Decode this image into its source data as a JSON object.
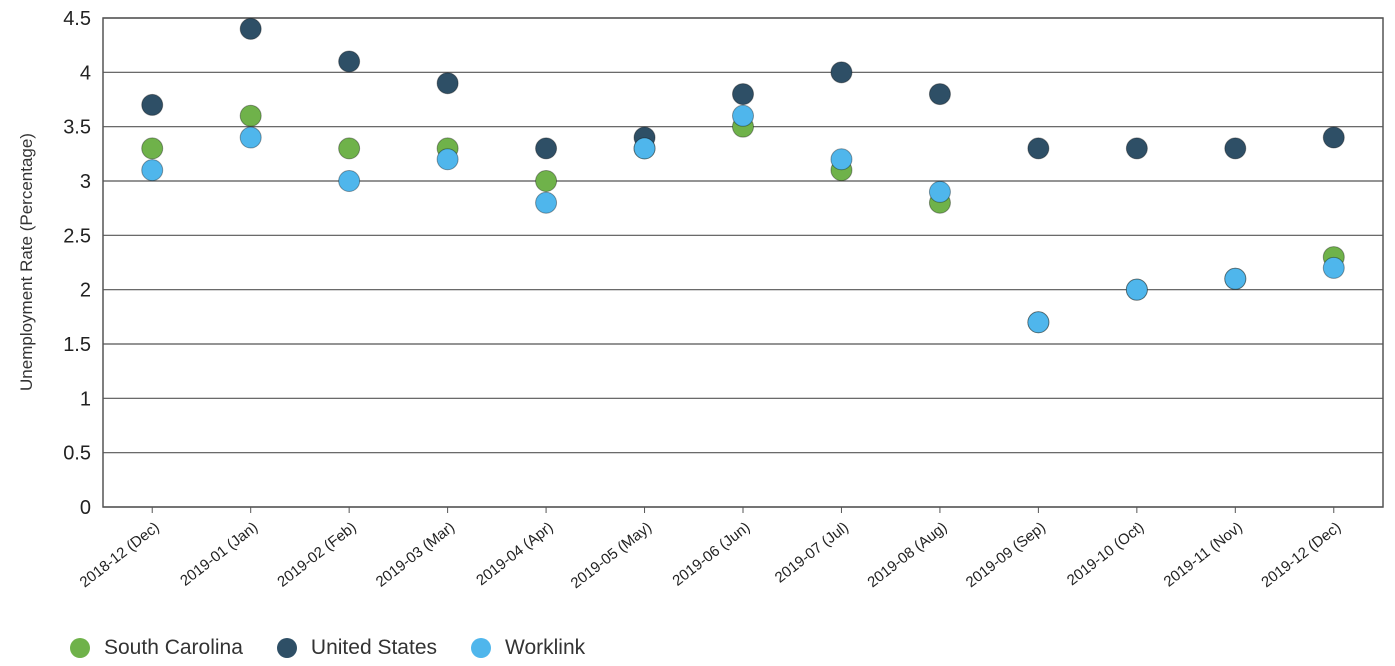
{
  "chart_data": {
    "type": "scatter",
    "title": "",
    "xlabel": "",
    "ylabel": "Unemployment Rate (Percentage)",
    "ylim": [
      0,
      4.5
    ],
    "yticks": [
      "0",
      "0.5",
      "1",
      "1.5",
      "2",
      "2.5",
      "3",
      "3.5",
      "4",
      "4.5"
    ],
    "grid": "horizontal",
    "legend_position": "bottom-left",
    "categories": [
      "2018-12 (Dec)",
      "2019-01 (Jan)",
      "2019-02 (Feb)",
      "2019-03 (Mar)",
      "2019-04 (Apr)",
      "2019-05 (May)",
      "2019-06 (Jun)",
      "2019-07 (Jul)",
      "2019-08 (Aug)",
      "2019-09 (Sep)",
      "2019-10 (Oct)",
      "2019-11 (Nov)",
      "2019-12 (Dec)"
    ],
    "series": [
      {
        "name": "South Carolina",
        "color": "#6fb24a",
        "values": [
          3.3,
          3.6,
          3.3,
          3.3,
          3.0,
          3.3,
          3.5,
          3.1,
          2.8,
          1.7,
          2.0,
          2.1,
          2.3
        ]
      },
      {
        "name": "United States",
        "color": "#2e4f66",
        "values": [
          3.7,
          4.4,
          4.1,
          3.9,
          3.3,
          3.4,
          3.8,
          4.0,
          3.8,
          3.3,
          3.3,
          3.3,
          3.4
        ]
      },
      {
        "name": "Worklink",
        "color": "#4fb6ec",
        "values": [
          3.1,
          3.4,
          3.0,
          3.2,
          2.8,
          3.3,
          3.6,
          3.2,
          2.9,
          1.7,
          2.0,
          2.1,
          2.2
        ]
      }
    ]
  }
}
